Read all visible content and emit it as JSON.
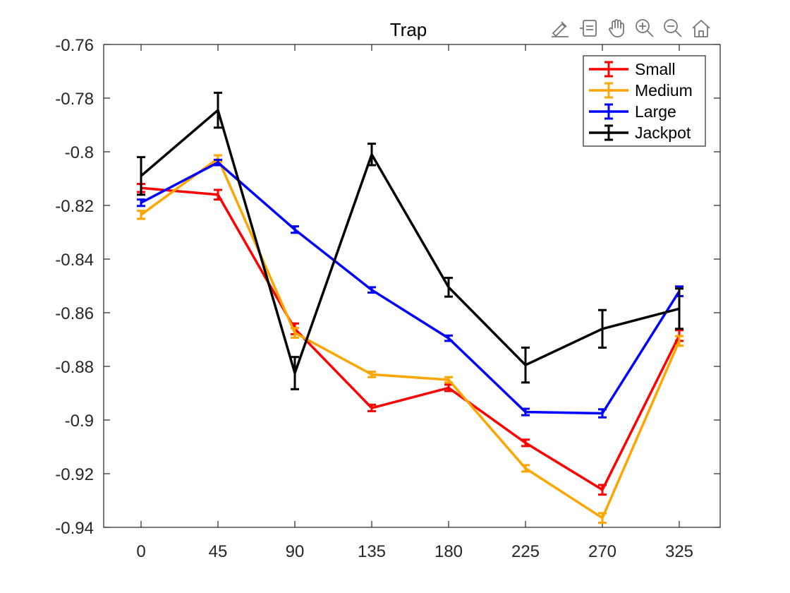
{
  "toolbar": {
    "icons": [
      "brush-edit-icon",
      "data-tips-icon",
      "pan-hand-icon",
      "zoom-in-icon",
      "zoom-out-icon",
      "home-icon"
    ]
  },
  "chart_data": {
    "type": "line",
    "title": "Trap",
    "xlabel": "",
    "ylabel": "",
    "categories": [
      "0",
      "45",
      "90",
      "135",
      "180",
      "225",
      "270",
      "325"
    ],
    "ylim": [
      -0.94,
      -0.76
    ],
    "yticks": [
      "-0.76",
      "-0.78",
      "-0.8",
      "-0.82",
      "-0.84",
      "-0.86",
      "-0.88",
      "-0.9",
      "-0.92",
      "-0.94"
    ],
    "ytick_values": [
      -0.76,
      -0.78,
      -0.8,
      -0.82,
      -0.84,
      -0.86,
      -0.88,
      -0.9,
      -0.92,
      -0.94
    ],
    "grid": false,
    "legend_position": "top-right",
    "error_bars": true,
    "series": [
      {
        "name": "Small",
        "color": "#ff0000",
        "values": [
          -0.8135,
          -0.816,
          -0.866,
          -0.8955,
          -0.888,
          -0.9085,
          -0.926,
          -0.8685
        ],
        "errors": [
          0.0015,
          0.0018,
          0.002,
          0.0012,
          0.0012,
          0.0012,
          0.0018,
          0.002
        ]
      },
      {
        "name": "Medium",
        "color": "#ffa500",
        "values": [
          -0.8235,
          -0.8025,
          -0.8675,
          -0.883,
          -0.885,
          -0.918,
          -0.9365,
          -0.8705
        ],
        "errors": [
          0.0015,
          0.0012,
          0.0018,
          0.001,
          0.001,
          0.0012,
          0.0018,
          0.0018
        ]
      },
      {
        "name": "Large",
        "color": "#0000ff",
        "values": [
          -0.819,
          -0.804,
          -0.829,
          -0.8515,
          -0.8695,
          -0.897,
          -0.8975,
          -0.852
        ],
        "errors": [
          0.0012,
          0.001,
          0.0012,
          0.001,
          0.001,
          0.0012,
          0.0015,
          0.0018
        ]
      },
      {
        "name": "Jackpot",
        "color": "#000000",
        "values": [
          -0.809,
          -0.7845,
          -0.8825,
          -0.801,
          -0.8505,
          -0.8795,
          -0.866,
          -0.8585
        ],
        "errors": [
          0.007,
          0.0065,
          0.006,
          0.004,
          0.0035,
          0.0065,
          0.007,
          0.0075
        ]
      }
    ]
  }
}
